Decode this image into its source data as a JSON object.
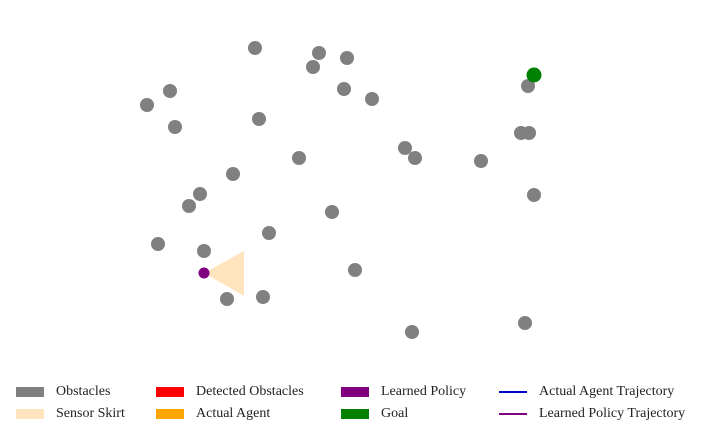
{
  "colors": {
    "obstacle": "#808080",
    "sensor_skirt": "#ffe4bd",
    "detected_obstacle": "#ff0000",
    "actual_agent": "#ffa500",
    "learned_policy": "#800080",
    "goal": "#008000",
    "actual_trajectory": "#0000cd",
    "learned_trajectory": "#800080"
  },
  "scene": {
    "obstacle_count": 29,
    "agent_heading": "right",
    "icons": {
      "obstacle": "grey-circle-icon",
      "goal": "green-circle-icon",
      "learned_policy": "purple-dot-icon",
      "sensor_skirt": "sensor-cone-icon"
    }
  },
  "legend": [
    {
      "label": "Obstacles",
      "type": "patch",
      "color": "#808080"
    },
    {
      "label": "Detected Obstacles",
      "type": "patch",
      "color": "#ff0000"
    },
    {
      "label": "Learned Policy",
      "type": "patch",
      "color": "#800080"
    },
    {
      "label": "Actual Agent Trajectory",
      "type": "line",
      "color": "#0000cd"
    },
    {
      "label": "Sensor Skirt",
      "type": "patch",
      "color": "#ffe4bd"
    },
    {
      "label": "Actual Agent",
      "type": "patch",
      "color": "#ffa500"
    },
    {
      "label": "Goal",
      "type": "patch",
      "color": "#008000"
    },
    {
      "label": "Learned Policy Trajectory",
      "type": "line",
      "color": "#800080"
    }
  ]
}
